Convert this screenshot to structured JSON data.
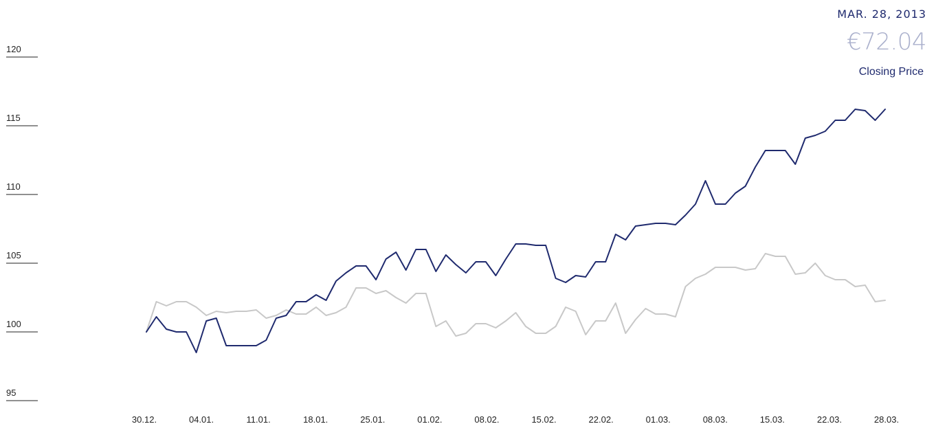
{
  "info": {
    "date": "MAR. 28, 2013",
    "price": "€72.04",
    "label": "Closing Price"
  },
  "colors": {
    "primary": "#1f2a6e",
    "secondary": "#c8c8c8",
    "axis": "#222222"
  },
  "chart_data": {
    "type": "line",
    "ylim": [
      95,
      120
    ],
    "yticks": [
      95,
      100,
      105,
      110,
      115,
      120
    ],
    "grid": false,
    "xticks": [
      "30.12.",
      "04.01.",
      "11.01.",
      "18.01.",
      "25.01.",
      "01.02.",
      "08.02.",
      "15.02.",
      "22.02.",
      "01.03.",
      "08.03.",
      "15.03.",
      "22.03.",
      "28.03."
    ],
    "series": [
      {
        "color": "#1f2a6e",
        "values": [
          100.0,
          101.1,
          100.2,
          100.0,
          100.0,
          98.5,
          100.8,
          101.0,
          99.0,
          99.0,
          99.0,
          99.0,
          99.4,
          101.0,
          101.2,
          102.2,
          102.2,
          102.7,
          102.3,
          103.7,
          104.3,
          104.8,
          104.8,
          103.8,
          105.3,
          105.8,
          104.5,
          106.0,
          106.0,
          104.4,
          105.6,
          104.9,
          104.3,
          105.1,
          105.1,
          104.1,
          105.3,
          106.4,
          106.4,
          106.3,
          106.3,
          103.9,
          103.6,
          104.1,
          104.0,
          105.1,
          105.1,
          107.1,
          106.7,
          107.7,
          107.8,
          107.9,
          107.9,
          107.8,
          108.5,
          109.3,
          111.0,
          109.3,
          109.3,
          110.1,
          110.6,
          112.0,
          113.2,
          113.2,
          113.2,
          112.2,
          114.1,
          114.3,
          114.6,
          115.4,
          115.4,
          116.2,
          116.1,
          115.4,
          116.2
        ]
      },
      {
        "color": "#c8c8c8",
        "values": [
          100.0,
          102.2,
          101.9,
          102.2,
          102.2,
          101.8,
          101.2,
          101.5,
          101.4,
          101.5,
          101.5,
          101.6,
          101.0,
          101.2,
          101.6,
          101.3,
          101.3,
          101.8,
          101.2,
          101.4,
          101.8,
          103.2,
          103.2,
          102.8,
          103.0,
          102.5,
          102.1,
          102.8,
          102.8,
          100.4,
          100.8,
          99.7,
          99.9,
          100.6,
          100.6,
          100.3,
          100.8,
          101.4,
          100.4,
          99.9,
          99.9,
          100.4,
          101.8,
          101.5,
          99.8,
          100.8,
          100.8,
          102.1,
          99.9,
          100.9,
          101.7,
          101.3,
          101.3,
          101.1,
          103.3,
          103.9,
          104.2,
          104.7,
          104.7,
          104.7,
          104.5,
          104.6,
          105.7,
          105.5,
          105.5,
          104.2,
          104.3,
          105.0,
          104.1,
          103.8,
          103.8,
          103.3,
          103.4,
          102.2,
          102.3
        ]
      }
    ]
  }
}
